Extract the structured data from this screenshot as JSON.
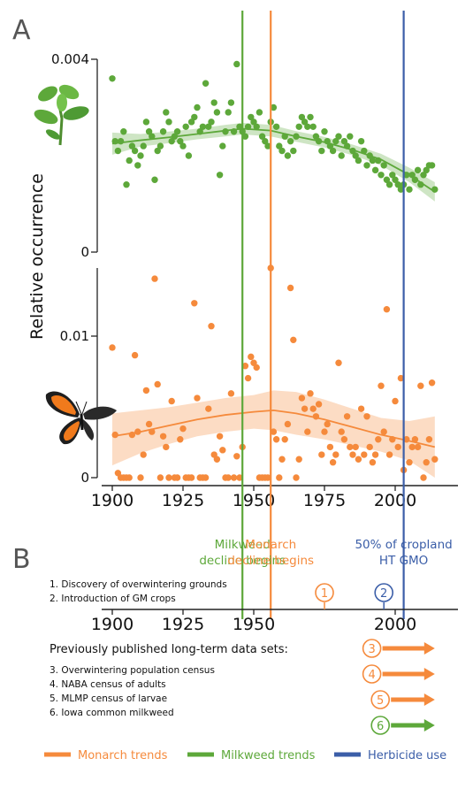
{
  "panel_labels": {
    "a": "A",
    "b": "B"
  },
  "y_axis_label": "Relative occurrence",
  "colors": {
    "monarch": "#f58a3c",
    "milkweed": "#5da83a",
    "herbicide": "#3b5ea8",
    "axis": "#222222"
  },
  "icons": {
    "plant": "milkweed-plant-icon",
    "butterfly": "monarch-butterfly-icon"
  },
  "vlines": [
    {
      "year": 1946,
      "color": "milkweed",
      "label1": "Milkweed",
      "label2": "decline begins"
    },
    {
      "year": 1956,
      "color": "monarch",
      "label1": "Monarch",
      "label2": "decline begins"
    },
    {
      "year": 2003,
      "color": "herbicide",
      "label1": "50% of cropland",
      "label2": "HT GMO"
    }
  ],
  "chart_data": [
    {
      "type": "scatter",
      "series_name": "Milkweed",
      "ylim": [
        0,
        0.004
      ],
      "yticks": [
        "0.004",
        "0"
      ],
      "xlim": [
        1897,
        2016
      ],
      "points": [
        [
          1900,
          0.0036
        ],
        [
          1901,
          0.0023
        ],
        [
          1902,
          0.0021
        ],
        [
          1903,
          0.0023
        ],
        [
          1904,
          0.0025
        ],
        [
          1905,
          0.0014
        ],
        [
          1906,
          0.0019
        ],
        [
          1907,
          0.0022
        ],
        [
          1908,
          0.0021
        ],
        [
          1909,
          0.0018
        ],
        [
          1910,
          0.002
        ],
        [
          1911,
          0.0022
        ],
        [
          1912,
          0.0027
        ],
        [
          1913,
          0.0025
        ],
        [
          1914,
          0.0024
        ],
        [
          1915,
          0.0015
        ],
        [
          1916,
          0.0021
        ],
        [
          1917,
          0.0022
        ],
        [
          1918,
          0.0025
        ],
        [
          1919,
          0.0029
        ],
        [
          1920,
          0.0027
        ],
        [
          1921,
          0.0023
        ],
        [
          1922,
          0.0024
        ],
        [
          1923,
          0.0025
        ],
        [
          1924,
          0.0023
        ],
        [
          1925,
          0.0022
        ],
        [
          1926,
          0.0026
        ],
        [
          1927,
          0.002
        ],
        [
          1928,
          0.0027
        ],
        [
          1929,
          0.0028
        ],
        [
          1930,
          0.003
        ],
        [
          1931,
          0.0025
        ],
        [
          1932,
          0.0026
        ],
        [
          1933,
          0.0035
        ],
        [
          1934,
          0.0026
        ],
        [
          1935,
          0.0027
        ],
        [
          1936,
          0.0031
        ],
        [
          1937,
          0.0029
        ],
        [
          1938,
          0.0016
        ],
        [
          1939,
          0.0022
        ],
        [
          1940,
          0.0025
        ],
        [
          1941,
          0.0029
        ],
        [
          1942,
          0.0031
        ],
        [
          1943,
          0.0025
        ],
        [
          1944,
          0.0039
        ],
        [
          1945,
          0.0026
        ],
        [
          1946,
          0.0025
        ],
        [
          1947,
          0.0024
        ],
        [
          1948,
          0.0026
        ],
        [
          1949,
          0.0028
        ],
        [
          1950,
          0.0027
        ],
        [
          1951,
          0.0026
        ],
        [
          1952,
          0.0029
        ],
        [
          1953,
          0.0024
        ],
        [
          1954,
          0.0023
        ],
        [
          1955,
          0.0022
        ],
        [
          1956,
          0.0027
        ],
        [
          1957,
          0.003
        ],
        [
          1958,
          0.0026
        ],
        [
          1959,
          0.0022
        ],
        [
          1960,
          0.0021
        ],
        [
          1961,
          0.0024
        ],
        [
          1962,
          0.002
        ],
        [
          1963,
          0.0023
        ],
        [
          1964,
          0.0021
        ],
        [
          1965,
          0.0024
        ],
        [
          1966,
          0.0026
        ],
        [
          1967,
          0.0028
        ],
        [
          1968,
          0.0027
        ],
        [
          1969,
          0.0026
        ],
        [
          1970,
          0.0028
        ],
        [
          1971,
          0.0026
        ],
        [
          1972,
          0.0024
        ],
        [
          1973,
          0.0023
        ],
        [
          1974,
          0.0021
        ],
        [
          1975,
          0.0025
        ],
        [
          1976,
          0.0023
        ],
        [
          1977,
          0.0022
        ],
        [
          1978,
          0.0021
        ],
        [
          1979,
          0.0023
        ],
        [
          1980,
          0.0024
        ],
        [
          1981,
          0.002
        ],
        [
          1982,
          0.0023
        ],
        [
          1983,
          0.0022
        ],
        [
          1984,
          0.0024
        ],
        [
          1985,
          0.0021
        ],
        [
          1986,
          0.002
        ],
        [
          1987,
          0.0019
        ],
        [
          1988,
          0.0023
        ],
        [
          1989,
          0.0021
        ],
        [
          1990,
          0.0018
        ],
        [
          1991,
          0.002
        ],
        [
          1992,
          0.0019
        ],
        [
          1993,
          0.0017
        ],
        [
          1994,
          0.0019
        ],
        [
          1995,
          0.0016
        ],
        [
          1996,
          0.0018
        ],
        [
          1997,
          0.0015
        ],
        [
          1998,
          0.0014
        ],
        [
          1999,
          0.0016
        ],
        [
          2000,
          0.0015
        ],
        [
          2001,
          0.0014
        ],
        [
          2002,
          0.0013
        ],
        [
          2003,
          0.0014
        ],
        [
          2004,
          0.0016
        ],
        [
          2005,
          0.0013
        ],
        [
          2006,
          0.0016
        ],
        [
          2007,
          0.0015
        ],
        [
          2008,
          0.0017
        ],
        [
          2009,
          0.0014
        ],
        [
          2010,
          0.0016
        ],
        [
          2011,
          0.0017
        ],
        [
          2012,
          0.0018
        ],
        [
          2013,
          0.0018
        ],
        [
          2014,
          0.0013
        ]
      ],
      "fit": [
        [
          1900,
          0.00225
        ],
        [
          1910,
          0.00232
        ],
        [
          1920,
          0.00238
        ],
        [
          1930,
          0.00245
        ],
        [
          1940,
          0.00252
        ],
        [
          1946,
          0.00256
        ],
        [
          1956,
          0.00252
        ],
        [
          1965,
          0.0024
        ],
        [
          1975,
          0.00228
        ],
        [
          1985,
          0.00212
        ],
        [
          1995,
          0.00192
        ],
        [
          2005,
          0.0016
        ],
        [
          2014,
          0.00125
        ]
      ],
      "band_upper": [
        [
          1900,
          0.00248
        ],
        [
          1910,
          0.00245
        ],
        [
          1920,
          0.0025
        ],
        [
          1930,
          0.00256
        ],
        [
          1940,
          0.00264
        ],
        [
          1946,
          0.00268
        ],
        [
          1956,
          0.00264
        ],
        [
          1965,
          0.00251
        ],
        [
          1975,
          0.00239
        ],
        [
          1985,
          0.00223
        ],
        [
          1995,
          0.00204
        ],
        [
          2005,
          0.00175
        ],
        [
          2014,
          0.00145
        ]
      ],
      "band_lower": [
        [
          1900,
          0.00202
        ],
        [
          1910,
          0.00219
        ],
        [
          1920,
          0.00226
        ],
        [
          1930,
          0.00234
        ],
        [
          1940,
          0.0024
        ],
        [
          1946,
          0.00244
        ],
        [
          1956,
          0.0024
        ],
        [
          1965,
          0.00229
        ],
        [
          1975,
          0.00217
        ],
        [
          1985,
          0.00201
        ],
        [
          1995,
          0.0018
        ],
        [
          2005,
          0.00145
        ],
        [
          2014,
          0.00105
        ]
      ]
    },
    {
      "type": "scatter",
      "series_name": "Monarch",
      "ylim": [
        0,
        0.0137
      ],
      "yticks": [
        "0.01",
        "0"
      ],
      "xlim": [
        1897,
        2016
      ],
      "points": [
        [
          1900,
          0.0085
        ],
        [
          1901,
          0.0028
        ],
        [
          1902,
          0.0003
        ],
        [
          1903,
          0.0
        ],
        [
          1904,
          0.0
        ],
        [
          1905,
          0.0
        ],
        [
          1906,
          0.0
        ],
        [
          1907,
          0.0028
        ],
        [
          1908,
          0.008
        ],
        [
          1909,
          0.003
        ],
        [
          1910,
          0.0
        ],
        [
          1911,
          0.0015
        ],
        [
          1912,
          0.0057
        ],
        [
          1913,
          0.0035
        ],
        [
          1914,
          0.003
        ],
        [
          1915,
          0.013
        ],
        [
          1916,
          0.0061
        ],
        [
          1917,
          0.0
        ],
        [
          1918,
          0.0027
        ],
        [
          1919,
          0.002
        ],
        [
          1920,
          0.0
        ],
        [
          1921,
          0.005
        ],
        [
          1922,
          0.0
        ],
        [
          1923,
          0.0
        ],
        [
          1924,
          0.0025
        ],
        [
          1925,
          0.0032
        ],
        [
          1926,
          0.0
        ],
        [
          1927,
          0.0
        ],
        [
          1928,
          0.0
        ],
        [
          1929,
          0.0114
        ],
        [
          1930,
          0.0052
        ],
        [
          1931,
          0.0
        ],
        [
          1932,
          0.0
        ],
        [
          1933,
          0.0
        ],
        [
          1934,
          0.0045
        ],
        [
          1935,
          0.0099
        ],
        [
          1936,
          0.0015
        ],
        [
          1937,
          0.0012
        ],
        [
          1938,
          0.0027
        ],
        [
          1939,
          0.0018
        ],
        [
          1940,
          0.0
        ],
        [
          1941,
          0.0
        ],
        [
          1942,
          0.0055
        ],
        [
          1943,
          0.0
        ],
        [
          1944,
          0.0014
        ],
        [
          1945,
          0.0
        ],
        [
          1946,
          0.002
        ],
        [
          1947,
          0.0073
        ],
        [
          1948,
          0.0065
        ],
        [
          1949,
          0.0079
        ],
        [
          1950,
          0.0075
        ],
        [
          1951,
          0.0072
        ],
        [
          1952,
          0.0
        ],
        [
          1953,
          0.0
        ],
        [
          1954,
          0.0
        ],
        [
          1955,
          0.0
        ],
        [
          1956,
          0.0137
        ],
        [
          1957,
          0.003
        ],
        [
          1958,
          0.0025
        ],
        [
          1959,
          0.0
        ],
        [
          1960,
          0.0012
        ],
        [
          1961,
          0.0025
        ],
        [
          1962,
          0.0035
        ],
        [
          1963,
          0.0124
        ],
        [
          1964,
          0.009
        ],
        [
          1965,
          0.0
        ],
        [
          1966,
          0.0012
        ],
        [
          1967,
          0.0052
        ],
        [
          1968,
          0.0045
        ],
        [
          1969,
          0.003
        ],
        [
          1970,
          0.0055
        ],
        [
          1971,
          0.0045
        ],
        [
          1972,
          0.004
        ],
        [
          1973,
          0.0048
        ],
        [
          1974,
          0.0015
        ],
        [
          1975,
          0.003
        ],
        [
          1976,
          0.0035
        ],
        [
          1977,
          0.002
        ],
        [
          1978,
          0.001
        ],
        [
          1979,
          0.0015
        ],
        [
          1980,
          0.0075
        ],
        [
          1981,
          0.003
        ],
        [
          1982,
          0.0025
        ],
        [
          1983,
          0.004
        ],
        [
          1984,
          0.002
        ],
        [
          1985,
          0.0015
        ],
        [
          1986,
          0.002
        ],
        [
          1987,
          0.0012
        ],
        [
          1988,
          0.0045
        ],
        [
          1989,
          0.0015
        ],
        [
          1990,
          0.004
        ],
        [
          1991,
          0.002
        ],
        [
          1992,
          0.001
        ],
        [
          1993,
          0.0015
        ],
        [
          1994,
          0.0025
        ],
        [
          1995,
          0.006
        ],
        [
          1996,
          0.003
        ],
        [
          1997,
          0.011
        ],
        [
          1998,
          0.0015
        ],
        [
          1999,
          0.0025
        ],
        [
          2000,
          0.005
        ],
        [
          2001,
          0.002
        ],
        [
          2002,
          0.0065
        ],
        [
          2003,
          0.0005
        ],
        [
          2004,
          0.0025
        ],
        [
          2005,
          0.001
        ],
        [
          2006,
          0.002
        ],
        [
          2007,
          0.0025
        ],
        [
          2008,
          0.002
        ],
        [
          2009,
          0.006
        ],
        [
          2010,
          0.0
        ],
        [
          2011,
          0.001
        ],
        [
          2012,
          0.0025
        ],
        [
          2013,
          0.0062
        ],
        [
          2014,
          0.0012
        ]
      ],
      "fit": [
        [
          1900,
          0.0027
        ],
        [
          1910,
          0.003
        ],
        [
          1920,
          0.0034
        ],
        [
          1930,
          0.0038
        ],
        [
          1940,
          0.0041
        ],
        [
          1950,
          0.0043
        ],
        [
          1957,
          0.0044
        ],
        [
          1965,
          0.0042
        ],
        [
          1975,
          0.0038
        ],
        [
          1985,
          0.0033
        ],
        [
          1995,
          0.0028
        ],
        [
          2005,
          0.0024
        ],
        [
          2014,
          0.002
        ]
      ],
      "band_upper": [
        [
          1900,
          0.0042
        ],
        [
          1910,
          0.0044
        ],
        [
          1920,
          0.0046
        ],
        [
          1930,
          0.0049
        ],
        [
          1940,
          0.0052
        ],
        [
          1950,
          0.0054
        ],
        [
          1957,
          0.0057
        ],
        [
          1965,
          0.0056
        ],
        [
          1975,
          0.0051
        ],
        [
          1985,
          0.0045
        ],
        [
          1995,
          0.0039
        ],
        [
          2005,
          0.0037
        ],
        [
          2014,
          0.004
        ]
      ],
      "band_lower": [
        [
          1900,
          0.0008
        ],
        [
          1910,
          0.0016
        ],
        [
          1920,
          0.0022
        ],
        [
          1930,
          0.0027
        ],
        [
          1940,
          0.003
        ],
        [
          1950,
          0.0032
        ],
        [
          1957,
          0.0031
        ],
        [
          1965,
          0.0028
        ],
        [
          1975,
          0.0025
        ],
        [
          1985,
          0.0021
        ],
        [
          1995,
          0.0017
        ],
        [
          2005,
          0.0011
        ],
        [
          2014,
          0.0
        ]
      ]
    }
  ],
  "x_ticks": [
    "1900",
    "1925",
    "1950",
    "1975",
    "2000"
  ],
  "panel_b": {
    "x_ticks": [
      "1900",
      "1925",
      "1950",
      "2000"
    ],
    "events": [
      {
        "num": "1",
        "year": 1975,
        "color": "monarch",
        "text": "1. Discovery of overwintering grounds"
      },
      {
        "num": "2",
        "year": 1996,
        "color": "herbicide",
        "text": "2. Introduction of GM crops"
      }
    ],
    "datasets_heading": "Previously published long-term data sets:",
    "datasets": [
      {
        "num": "3",
        "start": 1993,
        "color": "monarch",
        "text": "3. Overwintering population census"
      },
      {
        "num": "4",
        "start": 1993,
        "color": "monarch",
        "text": "4. NABA census of adults"
      },
      {
        "num": "5",
        "start": 1996,
        "color": "monarch",
        "text": "5. MLMP census of larvae"
      },
      {
        "num": "6",
        "start": 1996,
        "color": "milkweed",
        "text": "6. Iowa common milkweed"
      }
    ],
    "arrow_end": 2014
  },
  "legend": [
    {
      "label": "Monarch trends",
      "color": "monarch"
    },
    {
      "label": "Milkweed trends",
      "color": "milkweed"
    },
    {
      "label": "Herbicide use",
      "color": "herbicide"
    }
  ]
}
